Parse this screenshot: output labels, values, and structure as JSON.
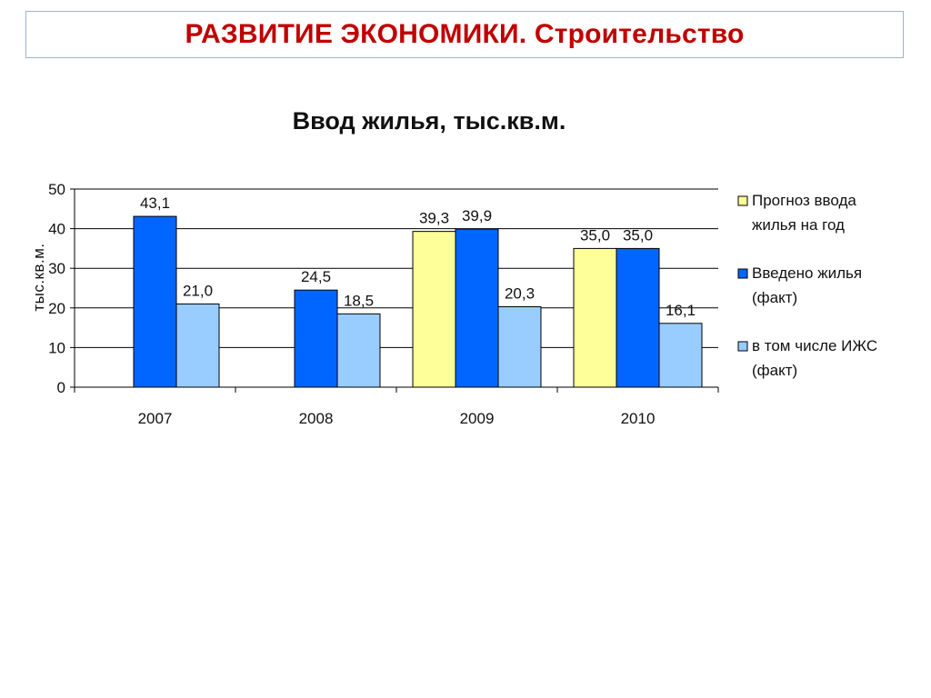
{
  "header": {
    "title": "РАЗВИТИЕ ЭКОНОМИКИ. Строительство"
  },
  "colors": {
    "header_title": "#c00000",
    "series": [
      "#ffff99",
      "#0066ff",
      "#99ccff"
    ],
    "bar_stroke": "#000000",
    "gridline": "#000000",
    "frame": "#9fb3c8"
  },
  "chart_data": {
    "type": "bar",
    "title": "Ввод жилья, тыс.кв.м.",
    "ylabel": "тыс.кв.м.",
    "xlabel": "",
    "ylim": [
      0,
      50
    ],
    "yticks": [
      0,
      10,
      20,
      30,
      40,
      50
    ],
    "grid": true,
    "legend_position": "right",
    "categories": [
      "2007",
      "2008",
      "2009",
      "2010"
    ],
    "series": [
      {
        "name": "Прогноз ввода жилья на год",
        "legend_lines": [
          "Прогноз ввода",
          "жилья на год"
        ],
        "values": [
          null,
          null,
          39.3,
          35.0
        ],
        "labels": [
          "",
          "",
          "39,3",
          "35,0"
        ]
      },
      {
        "name": "Введено жилья (факт)",
        "legend_lines": [
          "Введено жилья",
          "(факт)"
        ],
        "values": [
          43.1,
          24.5,
          39.9,
          35.0
        ],
        "labels": [
          "43,1",
          "24,5",
          "39,9",
          "35,0"
        ]
      },
      {
        "name": "в том числе ИЖС (факт)",
        "legend_lines": [
          "в том числе ИЖС",
          "(факт)"
        ],
        "values": [
          21.0,
          18.5,
          20.3,
          16.1
        ],
        "labels": [
          "21,0",
          "18,5",
          "20,3",
          "16,1"
        ]
      }
    ]
  }
}
